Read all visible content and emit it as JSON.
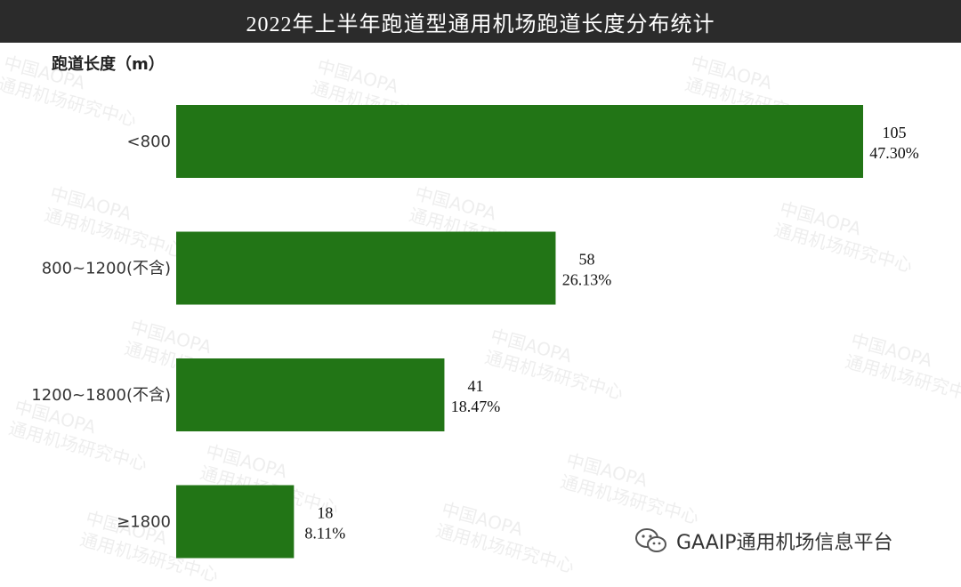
{
  "title": "2022年上半年跑道型通用机场跑道长度分布统计",
  "credit": "GAAIP通用机场信息平台",
  "watermark": {
    "line1": "中国AOPA",
    "line2": "通用机场研究中心"
  },
  "colors": {
    "bar": "#227516",
    "title_bg": "#2b2b2b",
    "title_text": "#ffffff"
  },
  "chart_data": {
    "type": "bar",
    "orientation": "horizontal",
    "title": "2022年上半年跑道型通用机场跑道长度分布统计",
    "ylabel": "跑道长度（m）",
    "xlabel": "",
    "categories": [
      "<800",
      "800~1200(不含)",
      "1200~1800(不含)",
      "≥1800"
    ],
    "values": [
      105,
      58,
      41,
      18
    ],
    "percent_labels": [
      "47.30%",
      "26.13%",
      "18.47%",
      "8.11%"
    ],
    "xlim": [
      0,
      105
    ],
    "grid": false,
    "legend": "none"
  }
}
